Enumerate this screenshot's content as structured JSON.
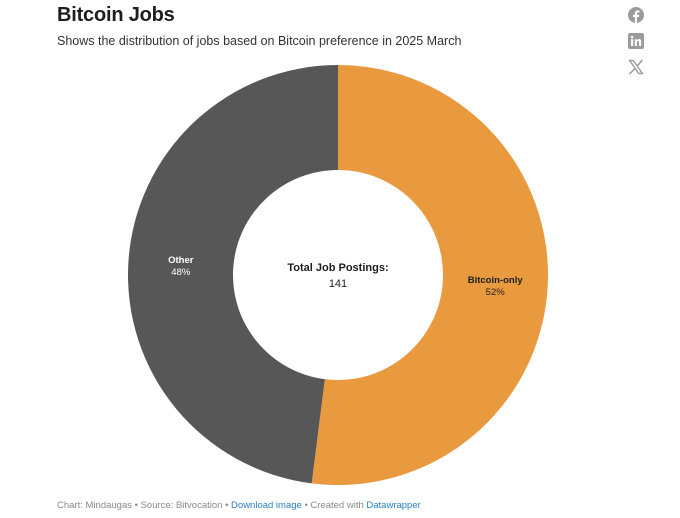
{
  "title": "Bitcoin Jobs",
  "subtitle": "Shows the distribution of jobs based on Bitcoin preference in 2025 March",
  "share": {
    "icons": [
      "facebook-icon",
      "linkedin-icon",
      "x-icon"
    ],
    "color": "#9b9b9b"
  },
  "chart_data": {
    "type": "pie",
    "donut": true,
    "slices": [
      {
        "label": "Bitcoin-only",
        "percent_label": "52%",
        "value": 52,
        "color": "#e99a3e"
      },
      {
        "label": "Other",
        "percent_label": "48%",
        "value": 48,
        "color": "#575757"
      }
    ],
    "center_label": "Total Job Postings:",
    "center_value": "141"
  },
  "footer": {
    "prefix": "Chart: Mindaugas • Source: Bitvocation • ",
    "download_link": "Download image",
    "middle": " • Created with ",
    "datawrapper_link": "Datawrapper"
  }
}
